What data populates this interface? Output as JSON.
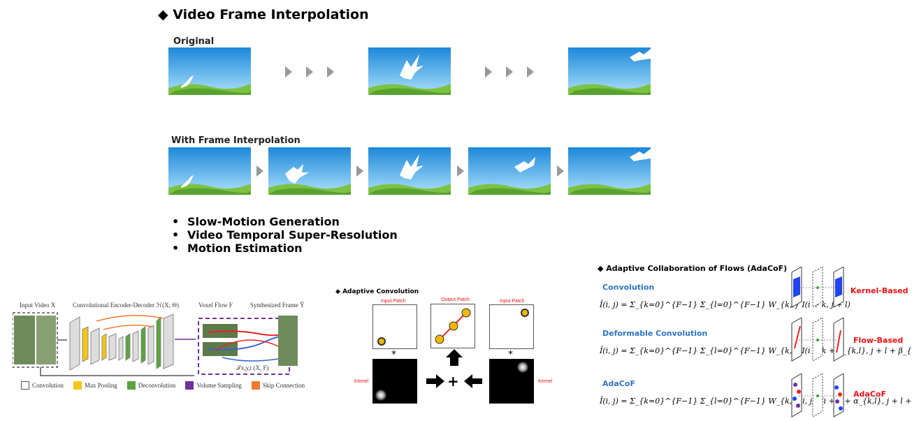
{
  "title": "◆ Video Frame Interpolation",
  "original_label": "Original",
  "interp_label": "With Frame Interpolation",
  "bullets": [
    "Slow-Motion Generation",
    "Video Temporal Super-Resolution",
    "Motion Estimation"
  ],
  "bullet_marker": "•",
  "voxel": {
    "input_video": "Input Video  X",
    "encoder": "Convolutional Encoder-Decoder  ℋ(X; Θ)",
    "voxel_flow": "Voxel Flow  F",
    "synth": "Synthesized Frame  Ŷ",
    "sampling_fn": "𝒯x,y,t (X, F)",
    "legend": [
      "Convolution",
      "Max Pooling",
      "Deconvolution",
      "Volume Sampling",
      "Skip Connection"
    ],
    "legend_colors": [
      "#ffffff",
      "#f5c518",
      "#5aa43c",
      "#7030a0",
      "#f07a30"
    ]
  },
  "adaptive_conv": {
    "title": "Adaptive Convolution",
    "input_patch": "Input Patch",
    "output_patch": "Output Patch",
    "kernel": "Kernel",
    "star": "*",
    "plus": "+"
  },
  "adacof": {
    "title": "Adaptive Collaboration of Flows (AdaCoF)",
    "sections": [
      {
        "name": "Convolution",
        "formula": "Î(i, j) = Σ_{k=0}^{F−1} Σ_{l=0}^{F−1} W_{k,l} I(i + k, j + l)",
        "tag": "Kernel-Based"
      },
      {
        "name": "Deformable Convolution",
        "formula": "Î(i, j) = Σ_{k=0}^{F−1} Σ_{l=0}^{F−1} W_{k,l} I(i + k + α_{k,l}, j + l + β_{k,l})",
        "tag": "Flow-Based"
      },
      {
        "name": "AdaCoF",
        "formula": "Î(i, j) = Σ_{k=0}^{F−1} Σ_{l=0}^{F−1} W_{k,l}(i, j) I(i + k + α_{k,l}, j + l + β_{k,l})",
        "tag": "AdaCoF"
      }
    ]
  }
}
